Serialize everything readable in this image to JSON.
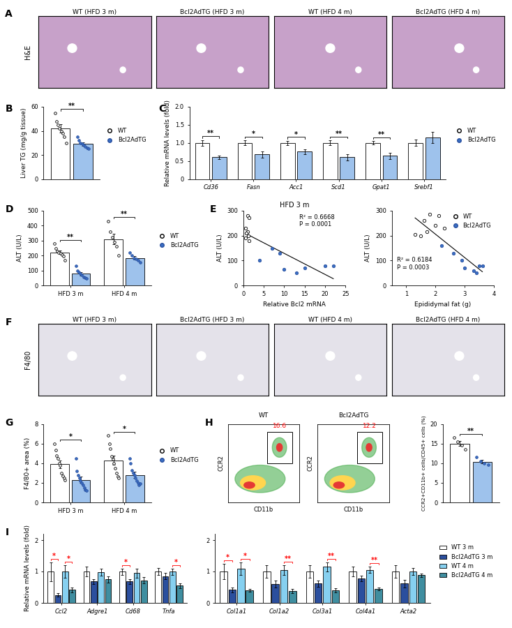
{
  "chart_data": [
    {
      "type": "image",
      "panel": "A",
      "ylabel": "H&E",
      "color": "#c7a1c9",
      "titles": [
        "WT (HFD 3 m)",
        "Bcl2AdTG (HFD 3 m)",
        "WT (HFD 4 m)",
        "Bcl2AdTG (HFD 4 m)"
      ]
    },
    {
      "type": "bar",
      "panel": "B",
      "ylabel": "Liver TG (mg/g tissue)",
      "categories": [
        null
      ],
      "series": [
        {
          "name": "WT",
          "color": "#ffffff",
          "marker": "open",
          "values": [
            42
          ],
          "errors": [
            3.5
          ],
          "points": [
            [
              55,
              48,
              45,
              42,
              40,
              38,
              35,
              30
            ]
          ]
        },
        {
          "name": "Bcl2AdTG",
          "color": "#9ec2ec",
          "marker": "filled",
          "values": [
            29
          ],
          "errors": [
            1.2
          ],
          "points": [
            [
              35,
              32,
              30,
              29,
              28,
              27,
              26,
              25
            ]
          ]
        }
      ],
      "significance": [
        "**"
      ],
      "ylim": [
        0,
        60
      ],
      "yticks": [
        0,
        20,
        40,
        60
      ],
      "legend": "right"
    },
    {
      "type": "bar",
      "panel": "C",
      "ylabel": "Relative mRNA levels (fold)",
      "categories": [
        "Cd36",
        "Fasn",
        "Acc1",
        "Scd1",
        "Gpat1",
        "Srebf1"
      ],
      "series": [
        {
          "name": "WT",
          "color": "#ffffff",
          "marker": "open",
          "values": [
            1.0,
            1.0,
            1.0,
            1.0,
            1.0,
            1.0
          ],
          "errors": [
            0.08,
            0.07,
            0.06,
            0.07,
            0.05,
            0.09
          ]
        },
        {
          "name": "Bcl2AdTG",
          "color": "#9ec2ec",
          "marker": "filled",
          "values": [
            0.6,
            0.68,
            0.76,
            0.6,
            0.64,
            1.15
          ],
          "errors": [
            0.05,
            0.09,
            0.07,
            0.09,
            0.08,
            0.15
          ]
        }
      ],
      "significance": [
        "**",
        "*",
        "*",
        "**",
        "**",
        null
      ],
      "ylim": [
        0,
        2.0
      ],
      "yticks": [
        0,
        0.5,
        {
          "value": 1,
          "label": "1.0"
        },
        1.5,
        {
          "value": 2,
          "label": "2.0"
        }
      ],
      "legend": "right"
    },
    {
      "type": "bar",
      "panel": "D",
      "ylabel": "ALT (U/L)",
      "categories": [
        "HFD 3 m",
        "HFD 4 m"
      ],
      "series": [
        {
          "name": "WT",
          "color": "#ffffff",
          "marker": "open",
          "values": [
            221,
            310
          ],
          "errors": [
            12,
            35
          ],
          "points": [
            [
              280,
              250,
              230,
              220,
              215,
              205,
              195,
              170
            ],
            [
              430,
              360,
              320,
              290,
              260,
              200
            ]
          ]
        },
        {
          "name": "Bcl2AdTG",
          "color": "#9ec2ec",
          "marker": "filled",
          "values": [
            79,
            185
          ],
          "errors": [
            12,
            10
          ],
          "points": [
            [
              130,
              100,
              90,
              80,
              70,
              60,
              55,
              50
            ],
            [
              220,
              200,
              185,
              180,
              170,
              155
            ]
          ]
        }
      ],
      "significance": [
        "**",
        "**"
      ],
      "ylim": [
        0,
        500
      ],
      "yticks": [
        0,
        100,
        200,
        300,
        400,
        500
      ],
      "legend": "right"
    },
    {
      "type": "scatter",
      "panel": "E",
      "title": "HFD 3 m",
      "xlabel": "Relative Bcl2 mRNA",
      "ylabel": "ALT (U/L)",
      "series": [
        {
          "name": "WT",
          "marker": "open",
          "x": [
            1,
            1.5,
            0.5,
            1,
            0.8,
            1.2,
            0.6,
            1.4
          ],
          "y": [
            280,
            270,
            230,
            215,
            210,
            200,
            190,
            180
          ]
        },
        {
          "name": "Bcl2AdTG",
          "marker": "filled",
          "x": [
            4,
            7,
            9,
            10,
            13,
            15,
            20,
            22
          ],
          "y": [
            100,
            150,
            130,
            65,
            50,
            70,
            80,
            80
          ]
        }
      ],
      "annotations": [
        "R² = 0.6668",
        "P = 0.0001"
      ],
      "xlim": [
        0,
        25
      ],
      "xticks": [
        0,
        5,
        10,
        15,
        20,
        25
      ],
      "ylim": [
        0,
        300
      ],
      "yticks": [
        0,
        100,
        200,
        300
      ]
    },
    {
      "type": "scatter",
      "xlabel": "Epididymal fat (g)",
      "ylabel": "ALT (U/L)",
      "series": [
        {
          "name": "WT",
          "marker": "open",
          "x": [
            1.6,
            1.8,
            2.1,
            2.0,
            1.7,
            1.3,
            1.5,
            2.3
          ],
          "y": [
            260,
            285,
            280,
            240,
            215,
            205,
            200,
            230
          ]
        },
        {
          "name": "Bcl2AdTG",
          "marker": "filled",
          "x": [
            2.2,
            2.6,
            2.9,
            3.3,
            3.5,
            3.4,
            3.0,
            3.6
          ],
          "y": [
            160,
            130,
            100,
            60,
            80,
            50,
            70,
            80
          ]
        }
      ],
      "annotations": [
        "R² = 0.6184",
        "P = 0.0003"
      ],
      "xlim": [
        0.5,
        4
      ],
      "xticks": [
        1,
        2,
        3,
        4
      ],
      "ylim": [
        0,
        300
      ],
      "yticks": [
        0,
        100,
        200,
        300
      ],
      "legend": "upper right"
    },
    {
      "type": "image",
      "panel": "F",
      "ylabel": "F4/80",
      "color": "#e4e2ea",
      "titles": [
        "WT (HFD 3 m)",
        "Bcl2AdTG (HFD 3 m)",
        "WT (HFD 4 m)",
        "Bcl2AdTG (HFD 4 m)"
      ]
    },
    {
      "type": "bar",
      "panel": "G",
      "ylabel": "F4/80+ area (%)",
      "categories": [
        "HFD 3 m",
        "HFD 4 m"
      ],
      "series": [
        {
          "name": "WT",
          "color": "#ffffff",
          "marker": "open",
          "values": [
            3.9,
            4.3
          ],
          "errors": [
            0.4,
            0.45
          ],
          "points": [
            [
              6.0,
              5.3,
              4.8,
              4.5,
              4.0,
              3.8,
              3.0,
              2.7,
              2.5,
              2.3
            ],
            [
              6.8,
              6.0,
              5.5,
              4.7,
              4.4,
              4.0,
              3.5,
              3.0,
              2.6,
              2.5
            ]
          ]
        },
        {
          "name": "Bcl2AdTG",
          "color": "#9ec2ec",
          "marker": "filled",
          "values": [
            2.3,
            2.8
          ],
          "errors": [
            0.3,
            0.3
          ],
          "points": [
            [
              4.5,
              3.2,
              2.8,
              2.5,
              2.2,
              2.0,
              1.8,
              1.5,
              1.3,
              1.2
            ],
            [
              4.5,
              4.0,
              3.3,
              3.0,
              2.8,
              2.5,
              2.2,
              2.0,
              1.8,
              1.9
            ]
          ]
        }
      ],
      "significance": [
        "*",
        "*"
      ],
      "ylim": [
        0,
        8
      ],
      "yticks": [
        0,
        2,
        4,
        6,
        8
      ],
      "legend": "right"
    },
    {
      "type": "flow",
      "panel": "H",
      "xlabel": "CD11b",
      "ylabel": "CCR2",
      "tick_labels": false,
      "panels": [
        {
          "title": "WT",
          "value": 16.6
        },
        {
          "title": "Bcl2AdTG",
          "value": 12.2
        }
      ]
    },
    {
      "type": "bar",
      "ylabel": "CCR2+CD11b+ cells/CD45+ cells (%)",
      "categories": [
        null
      ],
      "series": [
        {
          "name": "WT",
          "color": "#ffffff",
          "marker": "open",
          "values": [
            15.0
          ],
          "errors": [
            0.6
          ],
          "points": [
            [
              16.5,
              15.5,
              14.5,
              13.5
            ]
          ]
        },
        {
          "name": "Bcl2AdTG",
          "color": "#9ec2ec",
          "marker": "filled",
          "values": [
            10.4
          ],
          "errors": [
            0.5
          ],
          "points": [
            [
              11.5,
              10.5,
              10,
              9.6
            ]
          ]
        }
      ],
      "significance": [
        "**"
      ],
      "ylim": [
        0,
        20
      ],
      "yticks": [
        0,
        5,
        10,
        15,
        20
      ]
    },
    {
      "type": "bar",
      "panel": "I",
      "ylabel": "Relative mRNA levels (fold)",
      "categories": [
        "Ccl2",
        "Adgre1",
        "Cd68",
        "Tnfa"
      ],
      "series": [
        {
          "name": "WT 3 m",
          "color": "#ffffff",
          "values": [
            1.0,
            1.0,
            1.0,
            1.0
          ],
          "errors": [
            0.3,
            0.15,
            0.1,
            0.12
          ]
        },
        {
          "name": "Bcl2AdTG 3 m",
          "color": "#2b4f9e",
          "values": [
            0.25,
            0.68,
            0.68,
            0.85
          ],
          "errors": [
            0.06,
            0.08,
            0.08,
            0.1
          ]
        },
        {
          "name": "WT 4 m",
          "color": "#86d0f0",
          "values": [
            1.0,
            0.98,
            0.95,
            1.0
          ],
          "errors": [
            0.2,
            0.12,
            0.15,
            0.1
          ]
        },
        {
          "name": "Bcl2AdTG 4 m",
          "color": "#3f8ea0",
          "values": [
            0.42,
            0.75,
            0.72,
            0.55
          ],
          "errors": [
            0.08,
            0.1,
            0.1,
            0.08
          ]
        }
      ],
      "significance": [
        [
          "*",
          "*"
        ],
        [
          null,
          null
        ],
        [
          "*",
          null
        ],
        [
          null,
          "*"
        ]
      ],
      "ylim": [
        0,
        2.2
      ],
      "yticks": [
        0,
        1,
        2
      ]
    },
    {
      "type": "bar",
      "categories": [
        "Col1a1",
        "Col1a2",
        "Col3a1",
        "Col4a1",
        "Acta2"
      ],
      "series": [
        {
          "name": "WT 3 m",
          "color": "#ffffff",
          "values": [
            1.0,
            1.0,
            1.0,
            1.0,
            1.0
          ],
          "errors": [
            0.25,
            0.2,
            0.2,
            0.15,
            0.2
          ]
        },
        {
          "name": "Bcl2AdTG 3 m",
          "color": "#2b4f9e",
          "values": [
            0.42,
            0.6,
            0.62,
            0.78,
            0.62
          ],
          "errors": [
            0.08,
            0.12,
            0.1,
            0.08,
            0.12
          ]
        },
        {
          "name": "WT 4 m",
          "color": "#86d0f0",
          "values": [
            1.1,
            1.05,
            1.15,
            1.05,
            1.0
          ],
          "errors": [
            0.2,
            0.15,
            0.15,
            0.1,
            0.12
          ]
        },
        {
          "name": "Bcl2AdTG 4 m",
          "color": "#3f8ea0",
          "values": [
            0.4,
            0.38,
            0.4,
            0.45,
            0.88
          ],
          "errors": [
            0.05,
            0.06,
            0.06,
            0.05,
            0.06
          ]
        }
      ],
      "significance": [
        [
          "*",
          "*"
        ],
        [
          null,
          "**"
        ],
        [
          null,
          "**"
        ],
        [
          null,
          "**"
        ],
        [
          null,
          null
        ]
      ],
      "ylim": [
        0,
        2.2
      ],
      "yticks": [
        0,
        1,
        2
      ],
      "legend": "right"
    }
  ]
}
